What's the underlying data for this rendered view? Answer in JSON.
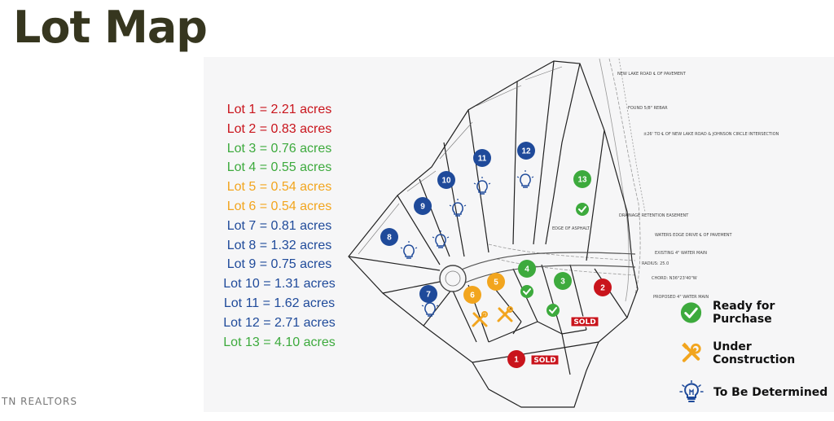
{
  "title": "Lot Map",
  "brand": "TN REALTORS",
  "colors": {
    "sold": "#c9141c",
    "ready": "#3daa3d",
    "construction": "#f2a51e",
    "tbd": "#1f4a9a",
    "title": "#36361f"
  },
  "lots": [
    {
      "number": "1",
      "label": "Lot 1 = 2.21 acres",
      "status": "sold"
    },
    {
      "number": "2",
      "label": "Lot 2 = 0.83 acres",
      "status": "sold"
    },
    {
      "number": "3",
      "label": "Lot 3 = 0.76 acres",
      "status": "ready"
    },
    {
      "number": "4",
      "label": "Lot 4 = 0.55 acres",
      "status": "ready"
    },
    {
      "number": "5",
      "label": "Lot 5 = 0.54 acres",
      "status": "construction"
    },
    {
      "number": "6",
      "label": "Lot 6 = 0.54 acres",
      "status": "construction"
    },
    {
      "number": "7",
      "label": "Lot 7 = 0.81 acres",
      "status": "tbd"
    },
    {
      "number": "8",
      "label": "Lot 8 = 1.32 acres",
      "status": "tbd"
    },
    {
      "number": "9",
      "label": "Lot 9 = 0.75 acres",
      "status": "tbd"
    },
    {
      "number": "10",
      "label": "Lot 10 = 1.31 acres",
      "status": "tbd"
    },
    {
      "number": "11",
      "label": "Lot 11 = 1.62 acres",
      "status": "tbd"
    },
    {
      "number": "12",
      "label": "Lot 12 = 2.71 acres",
      "status": "tbd"
    },
    {
      "number": "13",
      "label": "Lot 13 = 4.10 acres",
      "status": "ready"
    }
  ],
  "sold_label": "SOLD",
  "legend": [
    {
      "label": "Ready for Purchase",
      "icon": "check-circle-icon",
      "status": "ready"
    },
    {
      "label": "Under Construction",
      "icon": "tools-icon",
      "status": "construction"
    },
    {
      "label": "To Be Determined",
      "icon": "lightbulb-icon",
      "status": "tbd"
    }
  ],
  "map_notes": {
    "road": "NEW LAKE ROAD ℄ OF PAVEMENT",
    "found": "FOUND 5/8\" REBAR",
    "distance": "±26' TO ℄ OF NEW LAKE ROAD & JOHNSON CIRCLE INTERSECTION",
    "drainage": "DRAINAGE RETENTION EASEMENT",
    "asphalt": "EDGE OF ASPHALT",
    "waters_edge": "WATERS EDGE DRIVE ℄ OF PAVEMENT",
    "existing_main": "EXISTING 4\" WATER MAIN",
    "proposed_main": "PROPOSED 4\" WATER MAIN",
    "chord": "CHORD: N36°23'40\"W",
    "radius": "RADIUS: 25.0"
  }
}
